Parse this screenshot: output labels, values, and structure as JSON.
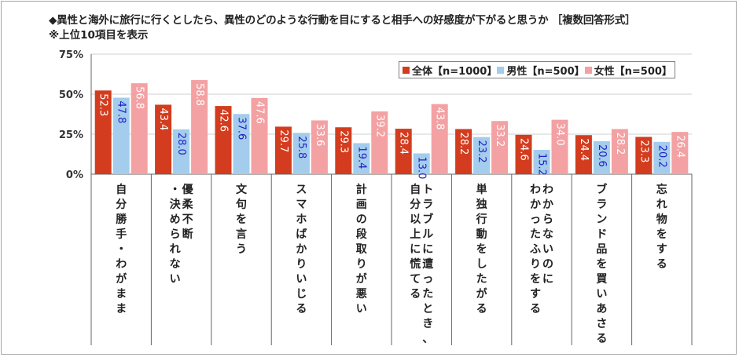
{
  "title": "◆異性と海外に旅行に行くとしたら、異性のどのような行動を目にすると相手への好感度が下がると思うか ［複数回答形式］",
  "subtitle": "※上位10項目を表示",
  "colors": {
    "all": "#d33c1e",
    "male": "#a4ccec",
    "female": "#f3a1a3",
    "male_label": "#1f1fc8"
  },
  "chart_data": {
    "type": "bar",
    "ylim": [
      0,
      75
    ],
    "yticks": [
      "0%",
      "25%",
      "50%",
      "75%"
    ],
    "ytick_values": [
      0,
      25,
      50,
      75
    ],
    "legend_position": "top-right",
    "categories": [
      "自分勝手・わがまま",
      "優柔不断・決められない",
      "文句を言う",
      "スマホばかりいじる",
      "計画の段取りが悪い",
      "トラブルに遭ったとき、自分以上に慌てる",
      "単独行動をしたがる",
      "わからないのにわかったふりをする",
      "ブランド品を買いあさる",
      "忘れ物をする"
    ],
    "category_lines": [
      [
        "自分勝手・わがまま"
      ],
      [
        "優柔不断",
        "・決められない"
      ],
      [
        "文句を言う"
      ],
      [
        "スマホばかりいじる"
      ],
      [
        "計画の段取りが悪い"
      ],
      [
        "トラブルに遭ったとき、",
        "自分以上に慌てる"
      ],
      [
        "単独行動をしたがる"
      ],
      [
        "わからないのに",
        "わかったふりをする"
      ],
      [
        "ブランド品を買いあさる"
      ],
      [
        "忘れ物をする"
      ]
    ],
    "series": [
      {
        "name": "全体【n=1000】",
        "key": "all",
        "values": [
          52.3,
          43.4,
          42.6,
          29.7,
          29.3,
          28.4,
          28.2,
          24.6,
          24.4,
          23.3
        ]
      },
      {
        "name": "男性【n=500】",
        "key": "male",
        "values": [
          47.8,
          28.0,
          37.6,
          25.8,
          19.4,
          13.0,
          23.2,
          15.2,
          20.6,
          20.2
        ]
      },
      {
        "name": "女性【n=500】",
        "key": "female",
        "values": [
          56.8,
          58.8,
          47.6,
          33.6,
          39.2,
          43.8,
          33.2,
          34.0,
          28.2,
          26.4
        ]
      }
    ]
  }
}
